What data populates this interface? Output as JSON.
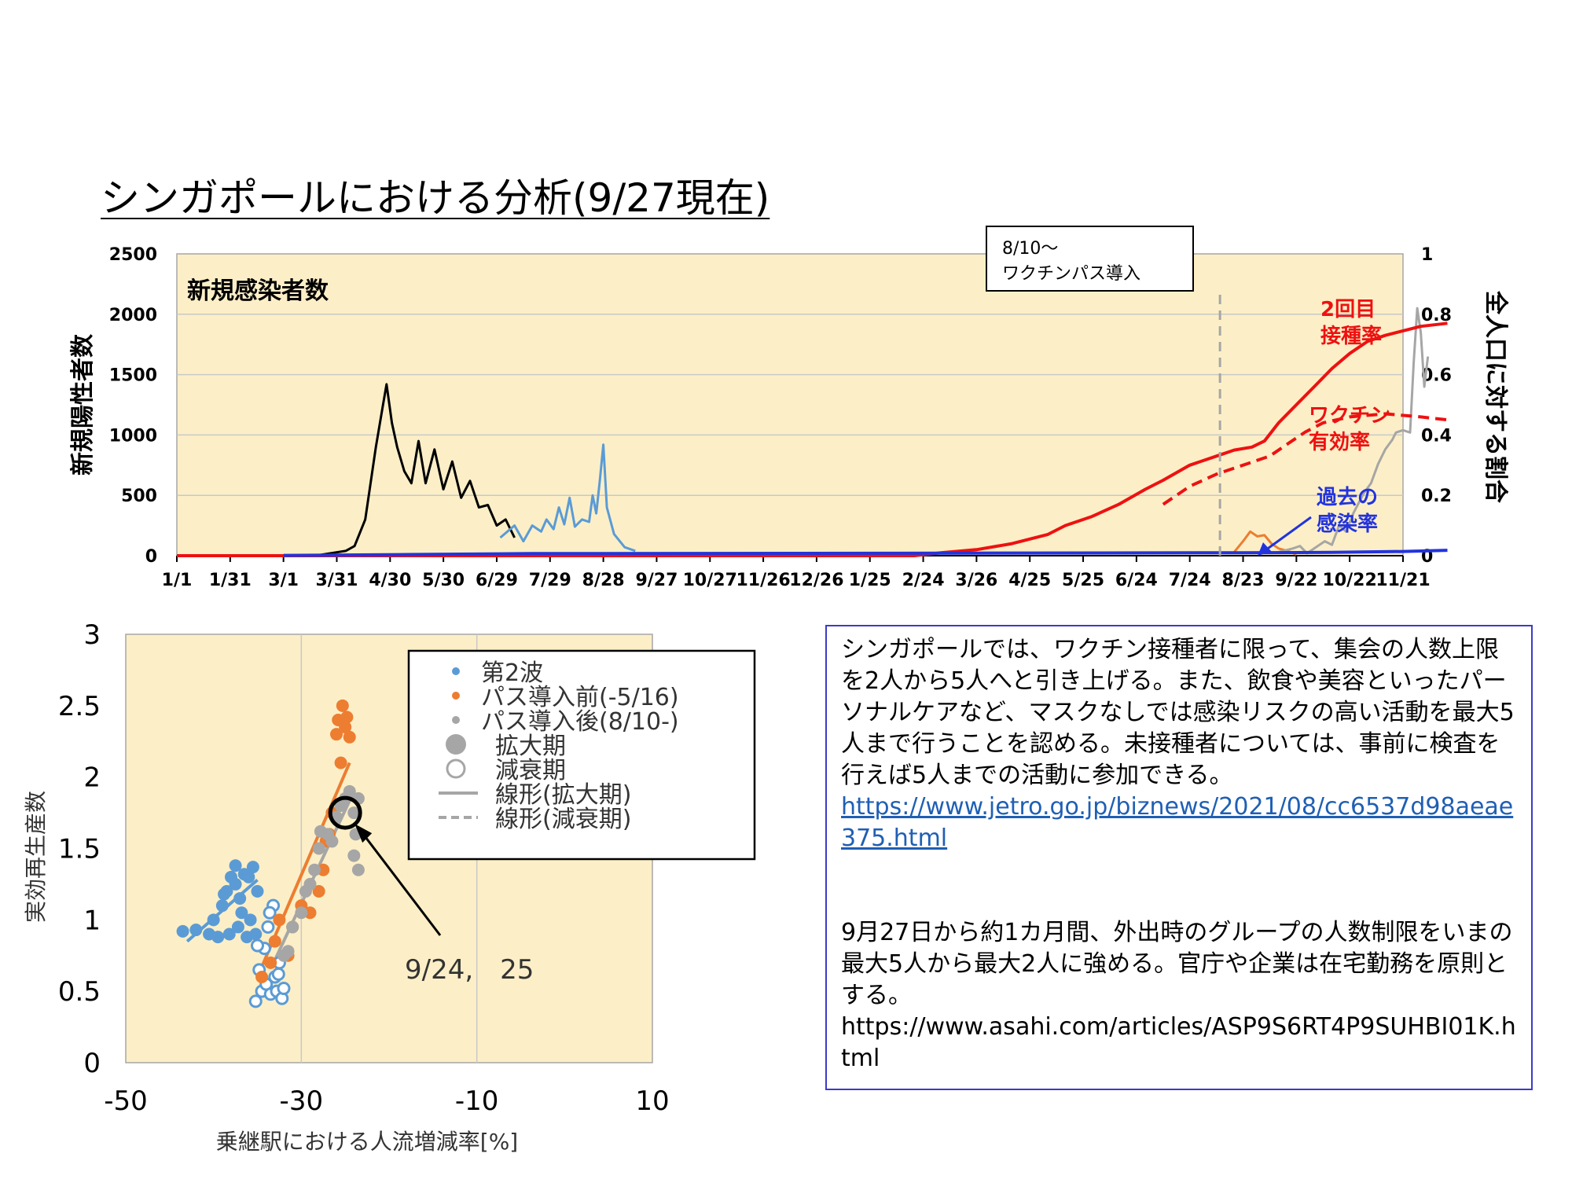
{
  "slide_title": "シンガポールにおける分析(9/27現在)",
  "colors": {
    "plot_bg": "#fcefc7",
    "black_series": "#000000",
    "lightblue_series": "#5b9bd5",
    "red_series": "#ee1111",
    "blue_series": "#2233dd",
    "gray_series": "#a6a6a6",
    "orange_series": "#ed7d31",
    "grid": "#c8c8c8",
    "note_border": "#3b3bc8"
  },
  "chart_data": [
    {
      "type": "line",
      "inner_title": "新規感染者数",
      "ylabel": "新規陽性者数",
      "y2label": "全人口に対する割合",
      "ylim": [
        0,
        2500
      ],
      "y2lim": [
        0,
        1
      ],
      "yticks": [
        "2500",
        "2000",
        "1500",
        "1000",
        "500",
        "0"
      ],
      "y2ticks": [
        "1",
        "0.8",
        "0.6",
        "0.4",
        "0.2",
        "0"
      ],
      "xticks": [
        "1/1",
        "1/31",
        "3/1",
        "3/31",
        "4/30",
        "5/30",
        "6/29",
        "7/29",
        "8/28",
        "9/27",
        "10/27",
        "11/26",
        "12/26",
        "1/25",
        "2/24",
        "3/26",
        "4/25",
        "5/25",
        "6/24",
        "7/24",
        "8/23",
        "9/22",
        "10/22",
        "11/21"
      ],
      "grid": true,
      "callout_box": {
        "line1": "8/10～",
        "line2": "ワクチンパス導入",
        "vline_x_day": 587
      },
      "annotations": [
        {
          "line1": "2回目",
          "line2": "接種率",
          "color": "#ee1111"
        },
        {
          "line1": "ワクチン",
          "line2": "有効率",
          "color": "#ee1111"
        },
        {
          "line1": "過去の",
          "line2": "感染率",
          "color": "#2233dd"
        }
      ],
      "series": [
        {
          "name": "新規陽性者数(第1波)",
          "axis": "left",
          "color": "#000000",
          "points": [
            [
              60,
              0
            ],
            [
              80,
              5
            ],
            [
              95,
              40
            ],
            [
              100,
              80
            ],
            [
              106,
              300
            ],
            [
              112,
              900
            ],
            [
              116,
              1250
            ],
            [
              118,
              1420
            ],
            [
              121,
              1100
            ],
            [
              124,
              900
            ],
            [
              128,
              700
            ],
            [
              132,
              600
            ],
            [
              136,
              950
            ],
            [
              140,
              600
            ],
            [
              145,
              880
            ],
            [
              150,
              550
            ],
            [
              155,
              780
            ],
            [
              160,
              480
            ],
            [
              165,
              620
            ],
            [
              170,
              400
            ],
            [
              175,
              420
            ],
            [
              180,
              250
            ],
            [
              185,
              300
            ],
            [
              190,
              150
            ]
          ]
        },
        {
          "name": "新規陽性者数(第2波)",
          "axis": "left",
          "color": "#5b9bd5",
          "points": [
            [
              182,
              150
            ],
            [
              186,
              200
            ],
            [
              190,
              250
            ],
            [
              195,
              120
            ],
            [
              200,
              250
            ],
            [
              205,
              200
            ],
            [
              208,
              300
            ],
            [
              212,
              220
            ],
            [
              215,
              400
            ],
            [
              218,
              260
            ],
            [
              221,
              480
            ],
            [
              224,
              240
            ],
            [
              228,
              300
            ],
            [
              232,
              280
            ],
            [
              234,
              500
            ],
            [
              236,
              350
            ],
            [
              238,
              620
            ],
            [
              240,
              920
            ],
            [
              242,
              400
            ],
            [
              246,
              180
            ],
            [
              252,
              70
            ],
            [
              258,
              40
            ]
          ]
        },
        {
          "name": "新規陽性者数(拡大)",
          "axis": "left",
          "color": "#ed7d31",
          "points": [
            [
              595,
              30
            ],
            [
              600,
              120
            ],
            [
              604,
              200
            ],
            [
              608,
              160
            ],
            [
              612,
              170
            ],
            [
              616,
              100
            ],
            [
              620,
              60
            ],
            [
              625,
              40
            ],
            [
              630,
              10
            ]
          ]
        },
        {
          "name": "新規陽性者数(パス導入後)",
          "axis": "left",
          "color": "#a6a6a6",
          "points": [
            [
              620,
              30
            ],
            [
              628,
              60
            ],
            [
              632,
              80
            ],
            [
              636,
              20
            ],
            [
              640,
              60
            ],
            [
              646,
              120
            ],
            [
              650,
              90
            ],
            [
              654,
              250
            ],
            [
              658,
              200
            ],
            [
              662,
              350
            ],
            [
              668,
              520
            ],
            [
              672,
              600
            ],
            [
              676,
              760
            ],
            [
              680,
              880
            ],
            [
              684,
              960
            ],
            [
              686,
              1020
            ],
            [
              690,
              1040
            ],
            [
              694,
              1020
            ],
            [
              696,
              1600
            ],
            [
              698,
              2050
            ],
            [
              700,
              1850
            ],
            [
              702,
              1400
            ],
            [
              704,
              1650
            ]
          ]
        },
        {
          "name": "2回目接種率",
          "axis": "right",
          "color": "#ee1111",
          "points": [
            [
              0,
              0
            ],
            [
              415,
              0
            ],
            [
              430,
              0.01
            ],
            [
              450,
              0.02
            ],
            [
              470,
              0.04
            ],
            [
              490,
              0.07
            ],
            [
              500,
              0.1
            ],
            [
              515,
              0.13
            ],
            [
              530,
              0.17
            ],
            [
              545,
              0.22
            ],
            [
              555,
              0.25
            ],
            [
              570,
              0.3
            ],
            [
              585,
              0.33
            ],
            [
              595,
              0.35
            ],
            [
              605,
              0.36
            ],
            [
              612,
              0.38
            ],
            [
              620,
              0.44
            ],
            [
              630,
              0.5
            ],
            [
              640,
              0.56
            ],
            [
              650,
              0.62
            ],
            [
              660,
              0.67
            ],
            [
              670,
              0.71
            ],
            [
              680,
              0.73
            ],
            [
              700,
              0.76
            ],
            [
              715,
              0.77
            ]
          ]
        },
        {
          "name": "ワクチン有効率",
          "axis": "right",
          "color": "#ee1111",
          "dashed": true,
          "points": [
            [
              555,
              0.17
            ],
            [
              570,
              0.23
            ],
            [
              585,
              0.27
            ],
            [
              595,
              0.29
            ],
            [
              605,
              0.31
            ],
            [
              615,
              0.33
            ],
            [
              625,
              0.37
            ],
            [
              635,
              0.41
            ],
            [
              645,
              0.44
            ],
            [
              660,
              0.46
            ],
            [
              680,
              0.47
            ],
            [
              700,
              0.46
            ],
            [
              715,
              0.45
            ]
          ]
        },
        {
          "name": "過去の感染率",
          "axis": "right",
          "color": "#2233dd",
          "points": [
            [
              60,
              0.001
            ],
            [
              130,
              0.004
            ],
            [
              200,
              0.007
            ],
            [
              400,
              0.008
            ],
            [
              600,
              0.01
            ],
            [
              650,
              0.011
            ],
            [
              690,
              0.014
            ],
            [
              715,
              0.018
            ]
          ]
        }
      ]
    },
    {
      "type": "scatter",
      "xlabel": "乗継駅における人流増減率[%]",
      "ylabel": "実効再生産数",
      "xlim": [
        -50,
        10
      ],
      "ylim": [
        0,
        3
      ],
      "xticks": [
        "-50",
        "-30",
        "-10",
        "10"
      ],
      "yticks": [
        "3",
        "2.5",
        "2",
        "1.5",
        "1",
        "0.5",
        "0"
      ],
      "grid": true,
      "legend": {
        "placement": "top-right",
        "entries": [
          {
            "label": "第2波",
            "marker": "dot",
            "color": "#5b9bd5"
          },
          {
            "label": "パス導入前(-5/16)",
            "marker": "dot",
            "color": "#ed7d31"
          },
          {
            "label": "パス導入後(8/10-)",
            "marker": "dot",
            "color": "#a6a6a6"
          },
          {
            "label": "拡大期",
            "marker": "filled-circle",
            "color": "#a6a6a6"
          },
          {
            "label": "減衰期",
            "marker": "open-circle",
            "color": "#a6a6a6"
          },
          {
            "label": "線形(拡大期)",
            "marker": "solid-line",
            "color": "#a6a6a6"
          },
          {
            "label": "線形(減衰期)",
            "marker": "dashed-line",
            "color": "#a6a6a6"
          }
        ]
      },
      "highlight": {
        "label": "9/24,　25",
        "x": -25,
        "y": 1.75
      },
      "series": [
        {
          "name": "第2波(拡大期)",
          "color": "#5b9bd5",
          "marker": "filled",
          "points": [
            [
              -43.5,
              0.92
            ],
            [
              -42,
              0.93
            ],
            [
              -40.5,
              0.9
            ],
            [
              -40,
              1.0
            ],
            [
              -39.5,
              0.88
            ],
            [
              -39,
              1.1
            ],
            [
              -38.5,
              1.2
            ],
            [
              -38.2,
              0.9
            ],
            [
              -38,
              1.3
            ],
            [
              -37.5,
              1.25
            ],
            [
              -37.2,
              0.95
            ],
            [
              -37,
              1.15
            ],
            [
              -36.8,
              1.05
            ],
            [
              -36.5,
              1.32
            ],
            [
              -36.2,
              0.88
            ],
            [
              -36,
              1.3
            ],
            [
              -35.8,
              1.0
            ],
            [
              -35.5,
              1.37
            ],
            [
              -35.2,
              0.9
            ],
            [
              -35,
              1.2
            ],
            [
              -37.5,
              1.38
            ],
            [
              -38.8,
              1.18
            ]
          ]
        },
        {
          "name": "第2波(減衰期)",
          "color": "#5b9bd5",
          "marker": "open",
          "points": [
            [
              -35.2,
              0.43
            ],
            [
              -34.8,
              0.65
            ],
            [
              -34.5,
              0.5
            ],
            [
              -34.2,
              0.8
            ],
            [
              -34,
              0.55
            ],
            [
              -33.8,
              0.95
            ],
            [
              -33.5,
              0.48
            ],
            [
              -33.2,
              1.1
            ],
            [
              -33,
              0.6
            ],
            [
              -32.8,
              0.5
            ],
            [
              -32.5,
              0.7
            ],
            [
              -32.2,
              0.45
            ],
            [
              -32,
              0.52
            ],
            [
              -33.6,
              1.05
            ],
            [
              -32.6,
              0.62
            ],
            [
              -35,
              0.82
            ]
          ]
        },
        {
          "name": "パス導入前(-5/16)",
          "color": "#ed7d31",
          "marker": "filled",
          "points": [
            [
              -34.5,
              0.6
            ],
            [
              -33.5,
              0.7
            ],
            [
              -33,
              0.85
            ],
            [
              -32.5,
              1.0
            ],
            [
              -31.5,
              0.75
            ],
            [
              -31,
              0.95
            ],
            [
              -30,
              1.1
            ],
            [
              -29,
              1.05
            ],
            [
              -28,
              1.2
            ],
            [
              -27.5,
              1.35
            ],
            [
              -27.2,
              1.55
            ],
            [
              -26.8,
              1.6
            ],
            [
              -26.5,
              1.75
            ],
            [
              -26,
              2.3
            ],
            [
              -25.8,
              2.4
            ],
            [
              -25.5,
              2.1
            ],
            [
              -25.3,
              2.5
            ],
            [
              -25,
              2.35
            ],
            [
              -24.8,
              2.42
            ],
            [
              -24.5,
              2.28
            ]
          ]
        },
        {
          "name": "パス導入後(8/10-)",
          "color": "#a6a6a6",
          "marker": "filled",
          "points": [
            [
              -32,
              0.75
            ],
            [
              -31.5,
              0.78
            ],
            [
              -31,
              0.95
            ],
            [
              -30,
              1.05
            ],
            [
              -29,
              1.25
            ],
            [
              -28.5,
              1.35
            ],
            [
              -28,
              1.5
            ],
            [
              -27,
              1.6
            ],
            [
              -26.5,
              1.55
            ],
            [
              -26,
              1.72
            ],
            [
              -25.5,
              1.8
            ],
            [
              -25,
              1.85
            ],
            [
              -24.5,
              1.9
            ],
            [
              -24,
              1.75
            ],
            [
              -23.5,
              1.85
            ],
            [
              -23.8,
              1.6
            ],
            [
              -24,
              1.45
            ],
            [
              -23.5,
              1.35
            ],
            [
              -29.5,
              1.2
            ],
            [
              -27.8,
              1.62
            ]
          ]
        }
      ],
      "trendlines": [
        {
          "name": "第2波 拡大期",
          "color": "#5b9bd5",
          "from": [
            -43,
            0.85
          ],
          "to": [
            -35,
            1.28
          ]
        },
        {
          "name": "パス導入前 拡大期",
          "color": "#ed7d31",
          "from": [
            -35,
            0.6
          ],
          "to": [
            -24.5,
            2.1
          ]
        },
        {
          "name": "パス導入後 拡大期",
          "color": "#a6a6a6",
          "from": [
            -33,
            0.72
          ],
          "to": [
            -24,
            1.9
          ]
        }
      ]
    }
  ],
  "note": {
    "para1": "シンガポールでは、ワクチン接種者に限って、集会の人数上限を2人から5人へと引き上げる。また、飲食や美容といったパーソナルケアなど、マスクなしでは感染リスクの高い活動を最大5人まで行うことを認める。未接種者については、事前に検査を行えば5人までの活動に参加できる。",
    "url1": "https://www.jetro.go.jp/biznews/2021/08/cc6537d98aeae375.html",
    "para2": "9月27日から約1カ月間、外出時のグループの人数制限をいまの最大5人から最大2人に強める。官庁や企業は在宅勤務を原則とする。",
    "url2": "https://www.asahi.com/articles/ASP9S6RT4P9SUHBI01K.html"
  }
}
